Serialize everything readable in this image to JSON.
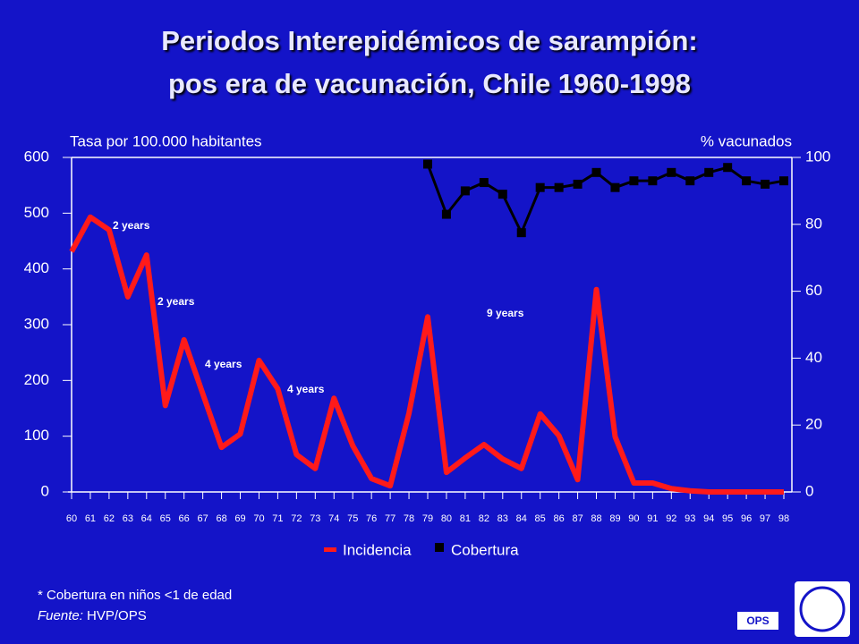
{
  "chart_data": {
    "type": "line",
    "title": [
      "Periodos Interepidémicos de sarampión:",
      "pos era de vacunación, Chile 1960-1998"
    ],
    "ylabel": "Tasa por 100.000 habitantes",
    "y2label": "% vacunados",
    "categories": [
      "60",
      "61",
      "62",
      "63",
      "64",
      "65",
      "66",
      "67",
      "68",
      "69",
      "70",
      "71",
      "72",
      "73",
      "74",
      "75",
      "76",
      "77",
      "78",
      "79",
      "80",
      "81",
      "82",
      "83",
      "84",
      "85",
      "86",
      "87",
      "88",
      "89",
      "90",
      "91",
      "92",
      "93",
      "94",
      "95",
      "96",
      "97",
      "98"
    ],
    "series": [
      {
        "name": "Incidencia",
        "color": "#ff1a1a",
        "values": [
          431,
          493,
          470,
          350,
          425,
          155,
          273,
          176,
          80,
          104,
          236,
          185,
          67,
          42,
          168,
          83,
          24,
          11,
          141,
          314,
          35,
          61,
          85,
          59,
          42,
          140,
          101,
          22,
          363,
          99,
          16,
          16,
          6,
          2,
          0,
          0,
          0,
          0,
          0
        ]
      },
      {
        "name": "Cobertura",
        "color": "#000000",
        "axis": "y2",
        "values": [
          null,
          null,
          null,
          null,
          null,
          null,
          null,
          null,
          null,
          null,
          null,
          null,
          null,
          null,
          null,
          null,
          null,
          null,
          null,
          98,
          83,
          90,
          92.5,
          89,
          77.5,
          91,
          91,
          92,
          95.5,
          91,
          93,
          93,
          95.5,
          93,
          95.5,
          97,
          93,
          92,
          93
        ]
      }
    ],
    "ylim": [
      0,
      600
    ],
    "yticks": [
      0,
      100,
      200,
      300,
      400,
      500,
      600
    ],
    "y2lim": [
      0,
      100
    ],
    "y2ticks": [
      0,
      20,
      40,
      60,
      80,
      100
    ],
    "annotations": [
      "2 years",
      "2 years",
      "4 years",
      "4 years",
      "9 years"
    ],
    "footnote": "* Cobertura en niños <1 de edad",
    "source_label": "Fuente:",
    "source": "HVP/OPS",
    "logo": "OPS"
  }
}
